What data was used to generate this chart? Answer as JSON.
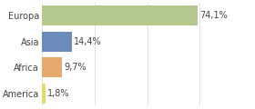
{
  "categories": [
    "Europa",
    "Asia",
    "Africa",
    "America"
  ],
  "values": [
    74.1,
    14.4,
    9.7,
    1.8
  ],
  "labels": [
    "74,1%",
    "14,4%",
    "9,7%",
    "1,8%"
  ],
  "bar_colors": [
    "#b5c98e",
    "#6b8cba",
    "#e8a96e",
    "#e8d96e"
  ],
  "background_color": "#ffffff",
  "xlim": [
    0,
    100
  ],
  "label_fontsize": 7.0,
  "tick_fontsize": 7.0,
  "bar_height": 0.78,
  "grid_color": "#d8d8d8",
  "label_color": "#444444",
  "tick_color": "#444444"
}
